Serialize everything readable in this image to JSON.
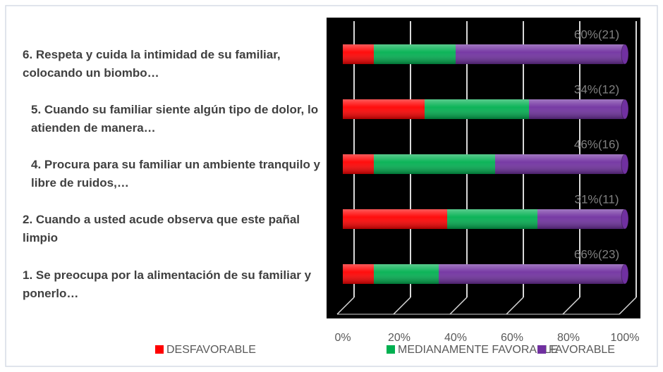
{
  "chart_data": {
    "type": "stacked_barh_percent",
    "categories": [
      "6.    Respeta y cuida  la intimidad de su familiar, colocando un biombo…",
      "5.    Cuando su familiar  siente algún tipo de dolor, lo atienden de manera…",
      "4.    Procura para su  familiar  un ambiente tranquilo y libre de ruidos,…",
      "2.    Cuando   a usted  acude observa que este   pañal  limpio",
      "1.    Se preocupa  por  la alimentación de su familiar  y ponerlo…"
    ],
    "series": [
      {
        "name": "DESFAVORABLE",
        "color": "#ff0000",
        "values": [
          11,
          29,
          11,
          37,
          11
        ]
      },
      {
        "name": "MEDIANAMENTE FAVORABLE",
        "color": "#00b050",
        "values": [
          29,
          37,
          43,
          32,
          23
        ]
      },
      {
        "name": "FAVORABLE",
        "color": "#7030a0",
        "values": [
          60,
          34,
          46,
          31,
          66
        ],
        "value_labels": [
          "60%(21)",
          "34%(12)",
          "46%(16)",
          "31%(11)",
          "66%(23)"
        ]
      }
    ],
    "xlim": [
      0,
      100
    ],
    "xticks": [
      {
        "value": 0,
        "label": "0%"
      },
      {
        "value": 20,
        "label": "20%"
      },
      {
        "value": 40,
        "label": "40%"
      },
      {
        "value": 60,
        "label": "60%"
      },
      {
        "value": 80,
        "label": "80%"
      },
      {
        "value": 100,
        "label": "100%"
      }
    ],
    "grid": true
  }
}
